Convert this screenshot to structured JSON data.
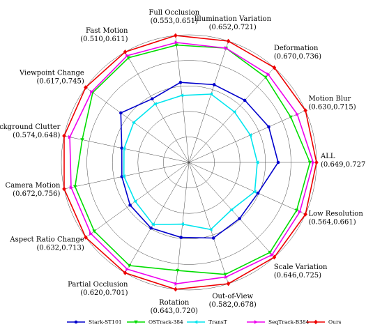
{
  "chart_data": {
    "type": "radar",
    "title": "",
    "axes": [
      {
        "name": "ALL",
        "range": "(0.649,0.727)",
        "min": 0.649,
        "max": 0.727
      },
      {
        "name": "Motion Blur",
        "range": "(0.630,0.715)",
        "min": 0.63,
        "max": 0.715
      },
      {
        "name": "Deformation",
        "range": "(0.670,0.736)",
        "min": 0.67,
        "max": 0.736
      },
      {
        "name": "Illumination Variation",
        "range": "(0.652,0.721)",
        "min": 0.652,
        "max": 0.721
      },
      {
        "name": "Full Occlusion",
        "range": "(0.553,0.651)",
        "min": 0.553,
        "max": 0.651
      },
      {
        "name": "Fast Motion",
        "range": "(0.510,0.611)",
        "min": 0.51,
        "max": 0.611
      },
      {
        "name": "Viewpoint Change",
        "range": "(0.617,0.745)",
        "min": 0.617,
        "max": 0.745
      },
      {
        "name": "Background Clutter",
        "range": "(0.574,0.648)",
        "min": 0.574,
        "max": 0.648
      },
      {
        "name": "Camera Motion",
        "range": "(0.672,0.756)",
        "min": 0.672,
        "max": 0.756
      },
      {
        "name": "Aspect Ratio Change",
        "range": "(0.632,0.713)",
        "min": 0.632,
        "max": 0.713
      },
      {
        "name": "Partial Occlusion",
        "range": "(0.620,0.701)",
        "min": 0.62,
        "max": 0.701
      },
      {
        "name": "Rotation",
        "range": "(0.643,0.720)",
        "min": 0.643,
        "max": 0.72
      },
      {
        "name": "Out-of-View",
        "range": "(0.582,0.678)",
        "min": 0.582,
        "max": 0.678
      },
      {
        "name": "Scale Variation",
        "range": "(0.646,0.725)",
        "min": 0.646,
        "max": 0.725
      },
      {
        "name": "Low Resolution",
        "range": "(0.564,0.661)",
        "min": 0.564,
        "max": 0.661
      }
    ],
    "series": [
      {
        "name": "Stark-ST101",
        "color": "#0000cc",
        "marker": "circle",
        "values": [
          0.692,
          0.675,
          0.702,
          0.684,
          0.597,
          0.547,
          0.68,
          0.597,
          0.698,
          0.661,
          0.652,
          0.673,
          0.624,
          0.677,
          0.602
        ]
      },
      {
        "name": "OSTrack-384",
        "color": "#00dd00",
        "marker": "triangle-down",
        "values": [
          0.721,
          0.699,
          0.726,
          0.715,
          0.64,
          0.603,
          0.732,
          0.632,
          0.745,
          0.703,
          0.693,
          0.703,
          0.667,
          0.719,
          0.65
        ]
      },
      {
        "name": "TransT",
        "color": "#00e5ee",
        "marker": "triangle-left",
        "values": [
          0.673,
          0.655,
          0.69,
          0.676,
          0.582,
          0.54,
          0.656,
          0.595,
          0.696,
          0.655,
          0.648,
          0.661,
          0.614,
          0.666,
          0.598
        ]
      },
      {
        "name": "SeqTrack-B384",
        "color": "#ee00ee",
        "marker": "triangle-right",
        "values": [
          0.724,
          0.706,
          0.729,
          0.715,
          0.643,
          0.606,
          0.734,
          0.643,
          0.749,
          0.707,
          0.697,
          0.715,
          0.67,
          0.722,
          0.654
        ]
      },
      {
        "name": "Ours",
        "color": "#ee0000",
        "marker": "diamond",
        "values": [
          0.727,
          0.715,
          0.736,
          0.721,
          0.651,
          0.611,
          0.745,
          0.648,
          0.756,
          0.713,
          0.701,
          0.72,
          0.678,
          0.725,
          0.661
        ]
      }
    ],
    "grid": true,
    "legend_position": "bottom"
  }
}
